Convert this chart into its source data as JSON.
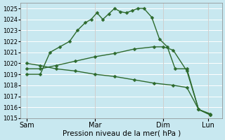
{
  "bg_color": "#c8e8f0",
  "line_color": "#2d6a2d",
  "grid_color": "#ffffff",
  "xlabel": "Pression niveau de la mer( hPa )",
  "ylim": [
    1015,
    1025.5
  ],
  "yticks": [
    1015,
    1016,
    1017,
    1018,
    1019,
    1020,
    1021,
    1022,
    1023,
    1024,
    1025
  ],
  "xtick_labels": [
    "Sam",
    "Mar",
    "Dim",
    "Lun"
  ],
  "xtick_positions": [
    0,
    3.5,
    7.0,
    9.3
  ],
  "xlim": [
    -0.3,
    10.0
  ],
  "series1_x": [
    0.0,
    0.7,
    1.2,
    1.7,
    2.2,
    2.6,
    3.0,
    3.3,
    3.6,
    3.9,
    4.2,
    4.5,
    4.8,
    5.1,
    5.4,
    5.7,
    6.0,
    6.4,
    6.8,
    7.2,
    7.6,
    8.2,
    8.8,
    9.4
  ],
  "series1_y": [
    1019.0,
    1019.0,
    1021.0,
    1021.5,
    1022.0,
    1023.0,
    1023.7,
    1024.0,
    1024.6,
    1024.0,
    1024.5,
    1025.0,
    1024.7,
    1024.6,
    1024.8,
    1025.0,
    1025.0,
    1024.2,
    1022.2,
    1021.5,
    1019.5,
    1019.5,
    1015.8,
    1015.4
  ],
  "series2_x": [
    0.0,
    0.7,
    1.5,
    2.5,
    3.5,
    4.5,
    5.5,
    6.5,
    7.0,
    7.5,
    8.2,
    8.8,
    9.4
  ],
  "series2_y": [
    1019.5,
    1019.5,
    1019.8,
    1020.2,
    1020.6,
    1020.9,
    1021.3,
    1021.5,
    1021.5,
    1021.2,
    1019.3,
    1015.8,
    1015.3
  ],
  "series3_x": [
    0.0,
    0.7,
    1.5,
    2.5,
    3.5,
    4.5,
    5.5,
    6.5,
    7.5,
    8.2,
    8.8,
    9.4
  ],
  "series3_y": [
    1020.0,
    1019.8,
    1019.5,
    1019.3,
    1019.0,
    1018.8,
    1018.5,
    1018.2,
    1018.0,
    1017.8,
    1015.8,
    1015.3
  ],
  "marker_size": 2.5,
  "line_width": 1.0,
  "xlabel_fontsize": 7.5,
  "ytick_fontsize": 6.0,
  "xtick_fontsize": 7.0
}
